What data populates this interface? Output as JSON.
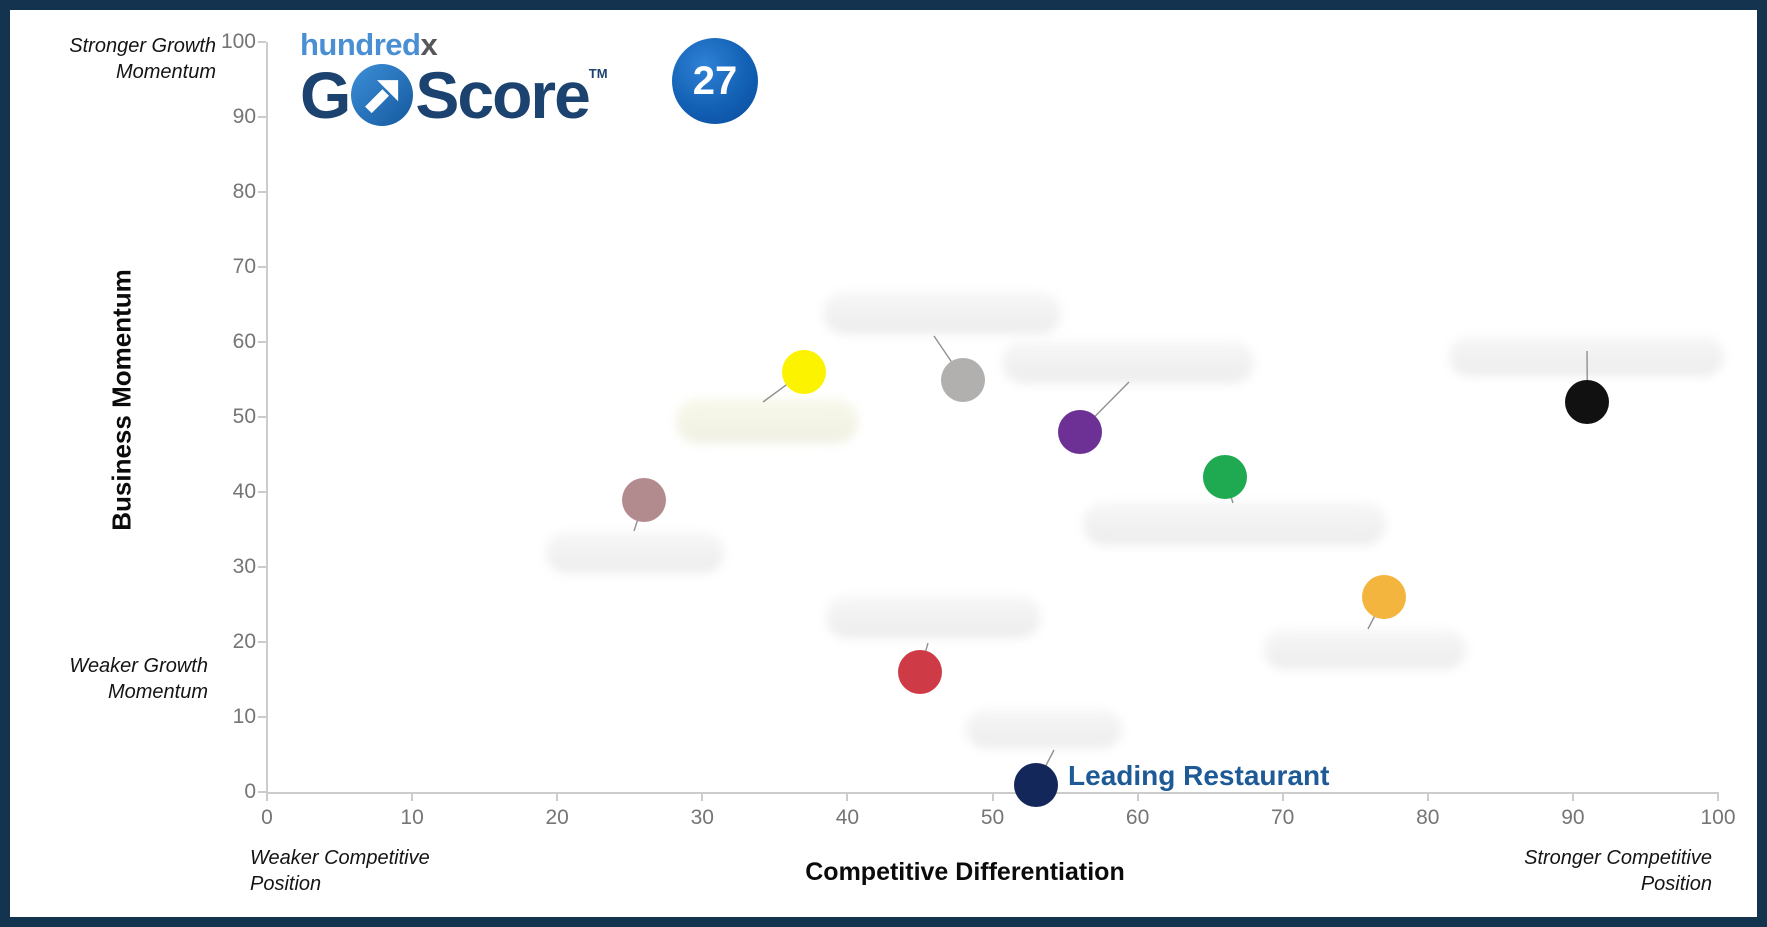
{
  "colors": {
    "border": "#14334e",
    "hundredx_blue": "#4a8fd3",
    "hundredx_x": "#55575a",
    "goscore_navy": "#1c4270",
    "badge_start": "#2f82d6",
    "badge_end": "#0a4a9e",
    "leading_label": "#1d5a96",
    "axis_line": "#cccccc",
    "tick_text": "#757575",
    "annotation_text": "#141414",
    "leader_line": "#909090"
  },
  "logo": {
    "brand_prefix": "hundred",
    "brand_suffix": "x",
    "product_g": "G",
    "product_rest": "Score",
    "trademark": "TM"
  },
  "badge": {
    "value": "27"
  },
  "chart_data": {
    "type": "scatter",
    "title": "",
    "xlabel": "Competitive Differentiation",
    "ylabel": "Business Momentum",
    "xlim": [
      0,
      100
    ],
    "ylim": [
      0,
      100
    ],
    "x_ticks": [
      "0",
      "10",
      "20",
      "30",
      "40",
      "50",
      "60",
      "70",
      "80",
      "90",
      "100"
    ],
    "y_ticks": [
      "0",
      "10",
      "20",
      "30",
      "40",
      "50",
      "60",
      "70",
      "80",
      "90",
      "100"
    ],
    "grid": false,
    "legend": false,
    "corner_annotations": {
      "top_left": "Stronger Growth\nMomentum",
      "bottom_left": "Weaker Growth\nMomentum",
      "x_left": "Weaker Competitive\nPosition",
      "x_right": "Stronger Competitive\nPosition"
    },
    "points": [
      {
        "id": "p-yellow",
        "x": 37,
        "y": 56,
        "color": "#fcf300",
        "label": "",
        "label_redacted": true
      },
      {
        "id": "p-gray",
        "x": 48,
        "y": 55,
        "color": "#b2b0ae",
        "label": "",
        "label_redacted": true
      },
      {
        "id": "p-purple",
        "x": 56,
        "y": 48,
        "color": "#6d3094",
        "label": "",
        "label_redacted": true
      },
      {
        "id": "p-green",
        "x": 66,
        "y": 42,
        "color": "#1fa950",
        "label": "",
        "label_redacted": true
      },
      {
        "id": "p-mauve",
        "x": 26,
        "y": 39,
        "color": "#b28b8f",
        "label": "",
        "label_redacted": true
      },
      {
        "id": "p-red",
        "x": 45,
        "y": 16,
        "color": "#ce3a45",
        "label": "",
        "label_redacted": true
      },
      {
        "id": "p-orange",
        "x": 77,
        "y": 26,
        "color": "#f4b53f",
        "label": "",
        "label_redacted": true
      },
      {
        "id": "p-black",
        "x": 91,
        "y": 52,
        "color": "#111111",
        "label": "",
        "label_redacted": true
      },
      {
        "id": "p-navy",
        "x": 53,
        "y": 1,
        "color": "#13275a",
        "label": "Leading Restaurant",
        "label_redacted": false
      }
    ]
  }
}
